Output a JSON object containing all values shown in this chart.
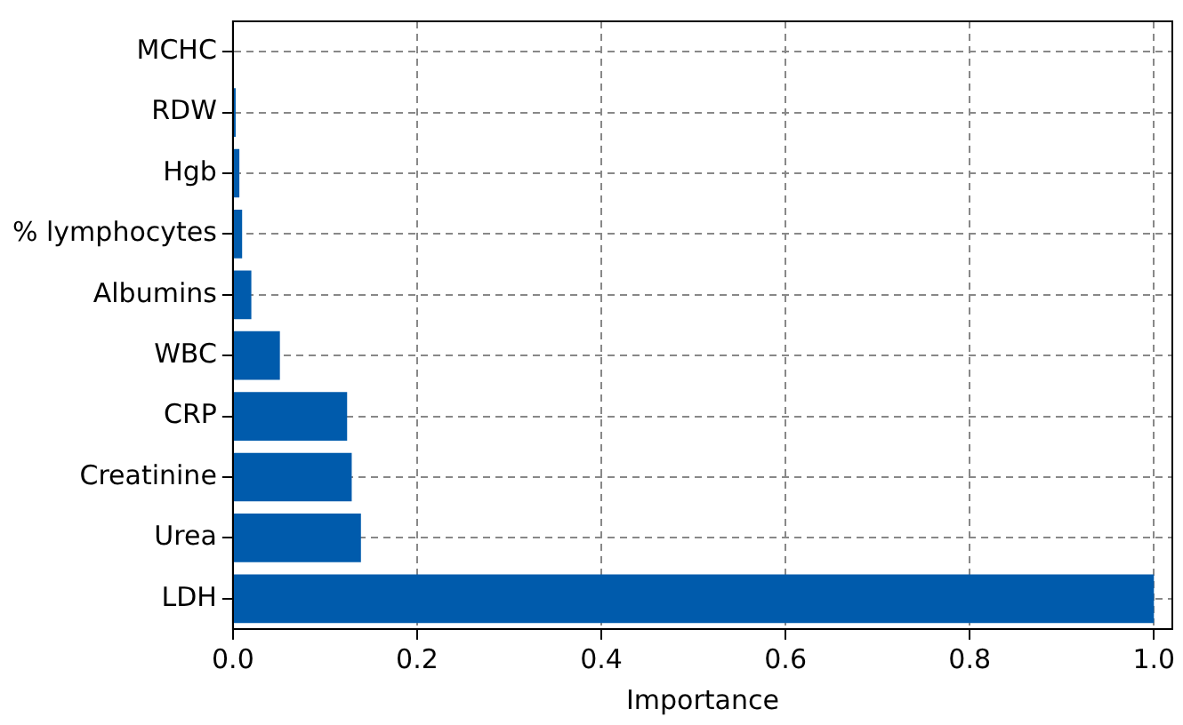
{
  "chart_data": {
    "type": "bar",
    "orientation": "horizontal",
    "xlabel": "Importance",
    "categories": [
      "MCHC",
      "RDW",
      "Hgb",
      "% lymphocytes",
      "Albumins",
      "WBC",
      "CRP",
      "Creatinine",
      "Urea",
      "LDH"
    ],
    "values": [
      0,
      0.003,
      0.007,
      0.01,
      0.02,
      0.051,
      0.124,
      0.129,
      0.139,
      1.0
    ],
    "color": "#005bac",
    "xlim": [
      0,
      1.02
    ],
    "xticks": [
      {
        "value": 0,
        "label": "0.0"
      },
      0.2,
      0.4,
      0.6,
      0.8,
      {
        "value": 1,
        "label": "1.0"
      }
    ],
    "grid": true,
    "legend": false
  }
}
